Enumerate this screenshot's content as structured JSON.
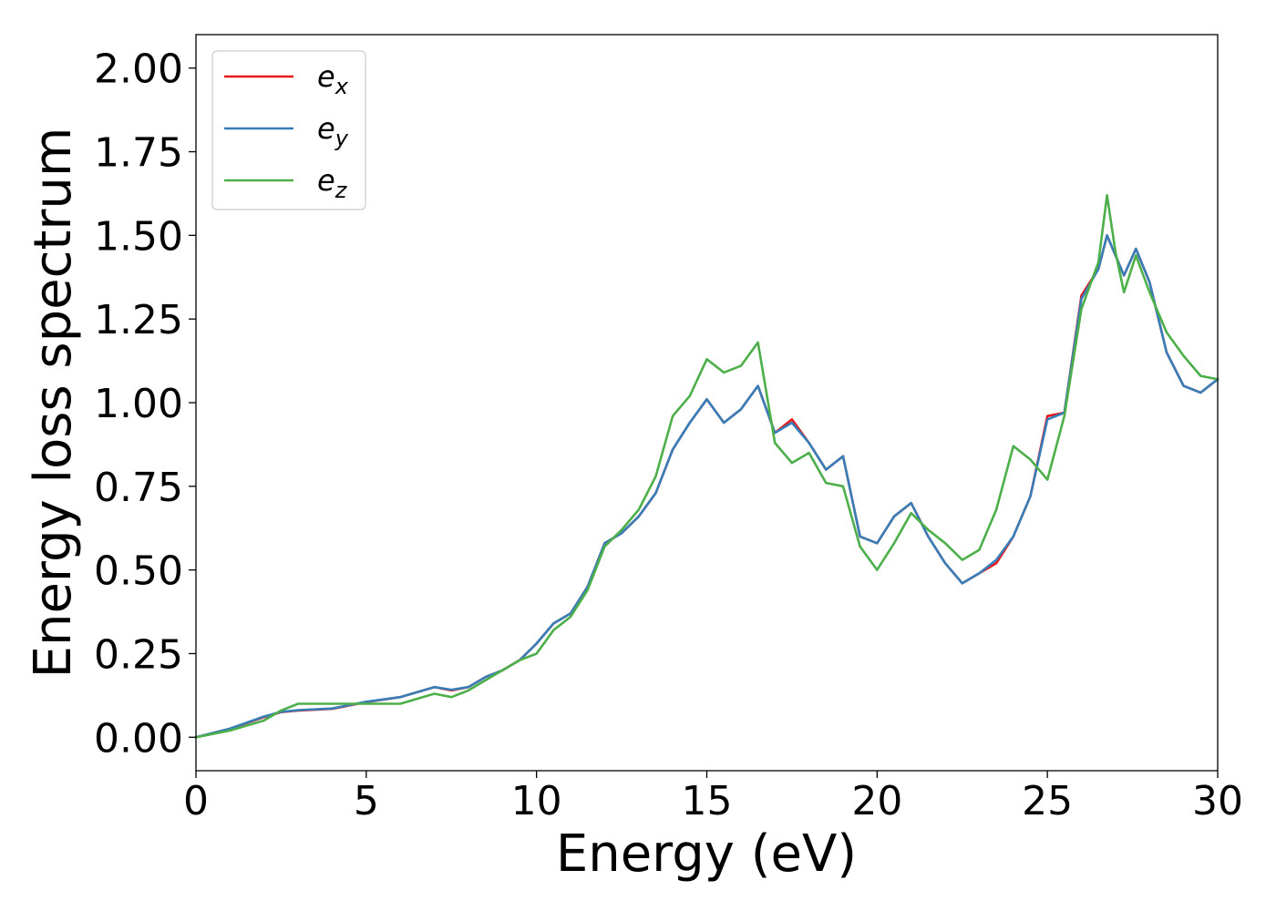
{
  "chart_data": {
    "type": "line",
    "xlabel": "Energy (eV)",
    "ylabel": "Energy loss spectrum",
    "xlim": [
      0,
      30
    ],
    "ylim": [
      -0.1,
      2.1
    ],
    "xticks": [
      "0",
      "5",
      "10",
      "15",
      "20",
      "25",
      "30"
    ],
    "yticks": [
      "0.00",
      "0.25",
      "0.50",
      "0.75",
      "1.00",
      "1.25",
      "1.50",
      "1.75",
      "2.00"
    ],
    "grid": false,
    "legend_position": "top-left",
    "series": [
      {
        "name": "e_x",
        "label_base": "e",
        "label_sub": "x",
        "color": "#e41a1c",
        "x": [
          0,
          1,
          2,
          2.5,
          3,
          4,
          5,
          6,
          7,
          7.5,
          8,
          8.5,
          9,
          9.5,
          10,
          10.5,
          11,
          11.5,
          12,
          12.5,
          13,
          13.5,
          14,
          14.5,
          15,
          15.5,
          16,
          16.5,
          17,
          17.5,
          18,
          18.5,
          19,
          19.5,
          20,
          20.5,
          21,
          21.5,
          22,
          22.5,
          23,
          23.5,
          24,
          24.5,
          25,
          25.5,
          26,
          26.5,
          26.75,
          27,
          27.25,
          27.6,
          28,
          28.5,
          29,
          29.5,
          30
        ],
        "y": [
          0,
          0.025,
          0.06,
          0.075,
          0.08,
          0.085,
          0.105,
          0.12,
          0.15,
          0.14,
          0.15,
          0.18,
          0.2,
          0.23,
          0.28,
          0.34,
          0.37,
          0.45,
          0.58,
          0.61,
          0.66,
          0.73,
          0.86,
          0.94,
          1.01,
          0.94,
          0.98,
          1.05,
          0.91,
          0.95,
          0.88,
          0.8,
          0.84,
          0.6,
          0.58,
          0.66,
          0.7,
          0.6,
          0.52,
          0.46,
          0.49,
          0.52,
          0.6,
          0.72,
          0.96,
          0.97,
          1.32,
          1.4,
          1.5,
          1.44,
          1.38,
          1.46,
          1.36,
          1.15,
          1.05,
          1.03,
          1.07
        ]
      },
      {
        "name": "e_y",
        "label_base": "e",
        "label_sub": "y",
        "color": "#377eb8",
        "x": [
          0,
          1,
          2,
          2.5,
          3,
          4,
          5,
          6,
          7,
          7.5,
          8,
          8.5,
          9,
          9.5,
          10,
          10.5,
          11,
          11.5,
          12,
          12.5,
          13,
          13.5,
          14,
          14.5,
          15,
          15.5,
          16,
          16.5,
          17,
          17.5,
          18,
          18.5,
          19,
          19.5,
          20,
          20.5,
          21,
          21.5,
          22,
          22.5,
          23,
          23.5,
          24,
          24.5,
          25,
          25.5,
          26,
          26.5,
          26.75,
          27,
          27.25,
          27.6,
          28,
          28.5,
          29,
          29.5,
          30
        ],
        "y": [
          0,
          0.026,
          0.062,
          0.076,
          0.081,
          0.086,
          0.106,
          0.12,
          0.15,
          0.142,
          0.15,
          0.18,
          0.2,
          0.23,
          0.28,
          0.34,
          0.37,
          0.45,
          0.58,
          0.61,
          0.66,
          0.73,
          0.86,
          0.94,
          1.01,
          0.94,
          0.98,
          1.05,
          0.91,
          0.94,
          0.88,
          0.8,
          0.84,
          0.6,
          0.58,
          0.66,
          0.7,
          0.6,
          0.52,
          0.46,
          0.49,
          0.53,
          0.6,
          0.72,
          0.95,
          0.97,
          1.31,
          1.4,
          1.5,
          1.44,
          1.38,
          1.46,
          1.36,
          1.15,
          1.05,
          1.03,
          1.07
        ]
      },
      {
        "name": "e_z",
        "label_base": "e",
        "label_sub": "z",
        "color": "#4daf4a",
        "x": [
          0,
          1,
          2,
          2.5,
          3,
          4,
          5,
          6,
          7,
          7.5,
          8,
          8.5,
          9,
          9.5,
          10,
          10.5,
          11,
          11.5,
          12,
          12.5,
          13,
          13.5,
          14,
          14.5,
          15,
          15.5,
          16,
          16.5,
          17,
          17.5,
          18,
          18.5,
          19,
          19.5,
          20,
          20.5,
          21,
          21.5,
          22,
          22.5,
          23,
          23.5,
          24,
          24.5,
          25,
          25.5,
          26,
          26.5,
          26.75,
          27,
          27.25,
          27.6,
          28,
          28.5,
          29,
          29.5,
          30
        ],
        "y": [
          0,
          0.02,
          0.05,
          0.08,
          0.1,
          0.1,
          0.1,
          0.1,
          0.13,
          0.12,
          0.14,
          0.17,
          0.2,
          0.23,
          0.25,
          0.32,
          0.36,
          0.44,
          0.57,
          0.62,
          0.68,
          0.78,
          0.96,
          1.02,
          1.13,
          1.09,
          1.11,
          1.18,
          0.88,
          0.82,
          0.85,
          0.76,
          0.75,
          0.57,
          0.5,
          0.58,
          0.67,
          0.62,
          0.58,
          0.53,
          0.56,
          0.68,
          0.87,
          0.83,
          0.77,
          0.96,
          1.28,
          1.42,
          1.62,
          1.45,
          1.33,
          1.44,
          1.33,
          1.21,
          1.14,
          1.08,
          1.07
        ]
      }
    ]
  }
}
